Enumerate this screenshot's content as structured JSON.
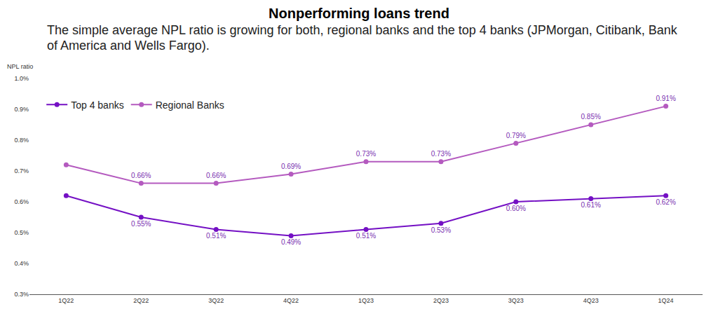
{
  "chart_data": {
    "type": "line",
    "title": "Nonperforming loans trend",
    "subtitle": "The simple average NPL ratio is growing for both, regional banks and the top 4 banks (JPMorgan, Citibank, Bank of America and Wells Fargo).",
    "ylabel": "NPL ratio",
    "categories": [
      "1Q22",
      "2Q22",
      "3Q22",
      "4Q22",
      "1Q23",
      "2Q23",
      "3Q23",
      "4Q23",
      "1Q24"
    ],
    "series": [
      {
        "name": "Top 4 banks",
        "color": "#7410c4",
        "values": [
          0.62,
          0.55,
          0.51,
          0.49,
          0.51,
          0.53,
          0.6,
          0.61,
          0.62
        ],
        "value_labels": [
          null,
          "0.55%",
          "0.51%",
          "0.49%",
          "0.51%",
          "0.53%",
          "0.60%",
          "0.61%",
          "0.62%"
        ]
      },
      {
        "name": "Regional Banks",
        "color": "#b45abf",
        "values": [
          0.72,
          0.66,
          0.66,
          0.69,
          0.73,
          0.73,
          0.79,
          0.85,
          0.91
        ],
        "value_labels": [
          null,
          "0.66%",
          "0.66%",
          "0.69%",
          "0.73%",
          "0.73%",
          "0.79%",
          "0.85%",
          "0.91%"
        ]
      }
    ],
    "ylim": [
      0.3,
      1.0
    ],
    "yticks": [
      {
        "value": 0.3,
        "label": "0.3%"
      },
      {
        "value": 0.4,
        "label": "0.4%"
      },
      {
        "value": 0.5,
        "label": "0.5%"
      },
      {
        "value": 0.6,
        "label": "0.6%"
      },
      {
        "value": 0.7,
        "label": "0.7%"
      },
      {
        "value": 0.8,
        "label": "0.8%"
      },
      {
        "value": 0.9,
        "label": "0.9%"
      },
      {
        "value": 1.0,
        "label": "1.0%"
      }
    ],
    "grid": false,
    "legend": "upper left",
    "data_labels": true,
    "marker": "circle"
  }
}
